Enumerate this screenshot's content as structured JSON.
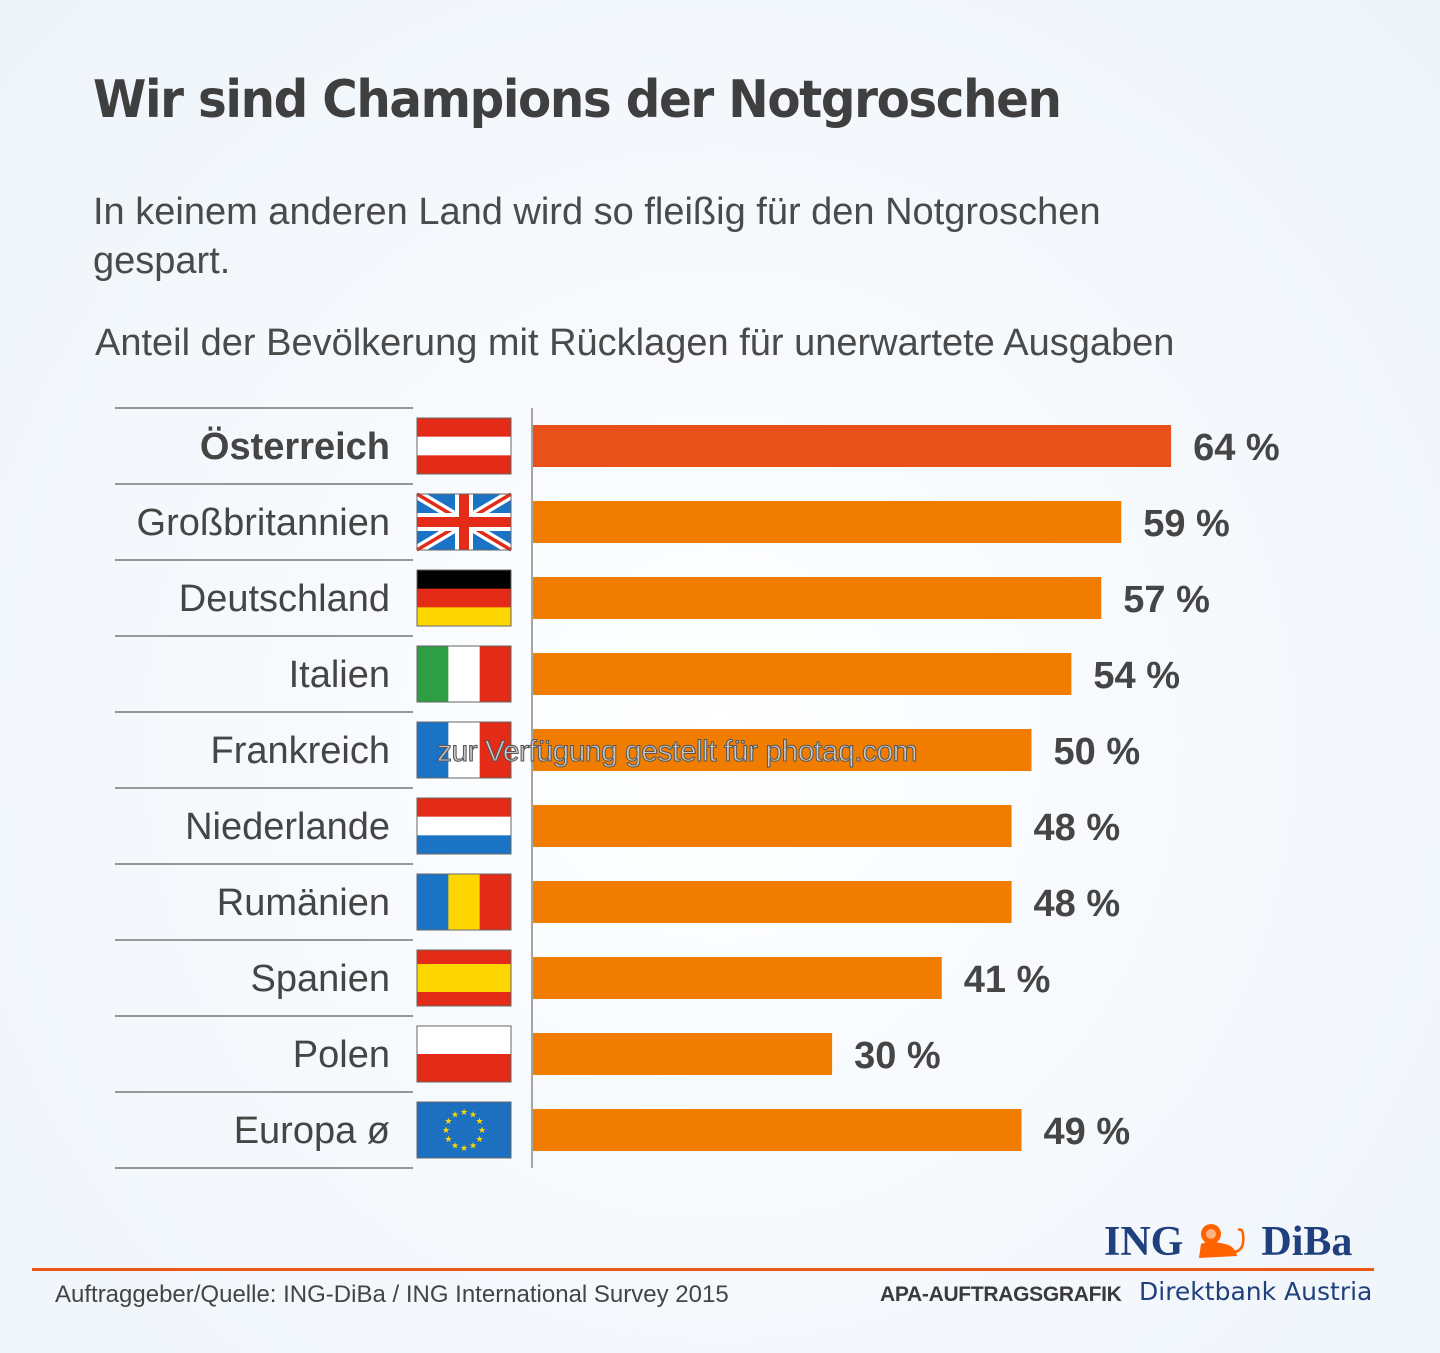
{
  "header": {
    "title": "Wir sind Champions der Notgroschen",
    "subtitle": "In keinem anderen Land wird so fleißig für den Notgroschen gespart."
  },
  "chart_data": {
    "type": "bar",
    "orientation": "horizontal",
    "title": "Anteil der Bevölkerung mit Rücklagen für unerwartete Ausgaben",
    "xlabel": "",
    "ylabel": "",
    "unit": "%",
    "xlim": [
      0,
      100
    ],
    "grid": false,
    "categories": [
      "Österreich",
      "Großbritannien",
      "Deutschland",
      "Italien",
      "Frankreich",
      "Niederlande",
      "Rumänien",
      "Spanien",
      "Polen",
      "Europa ø"
    ],
    "values": [
      64,
      59,
      57,
      54,
      50,
      48,
      48,
      41,
      30,
      49
    ],
    "value_labels": [
      "64 %",
      "59 %",
      "57 %",
      "54 %",
      "50 %",
      "48 %",
      "48 %",
      "41 %",
      "30 %",
      "49 %"
    ],
    "flags": [
      "austria",
      "united-kingdom",
      "germany",
      "italy",
      "france",
      "netherlands",
      "romania",
      "spain",
      "poland",
      "european-union"
    ],
    "highlight_index": 0,
    "colors": {
      "bar": "#f07d00",
      "highlight_bar": "#e8511a",
      "axis": "#888888"
    }
  },
  "watermark": "zur Verfügung gestellt für photaq.com",
  "footer": {
    "source": "Auftraggeber/Quelle: ING-DiBa / ING International Survey 2015",
    "apa": "APA-AUFTRAGSGRAFIK",
    "logo_left": "ING",
    "logo_right": "DiBa",
    "logo_tagline": "Direktbank Austria",
    "rule_color": "#e8571b",
    "brand_color": "#1f3f7d"
  }
}
